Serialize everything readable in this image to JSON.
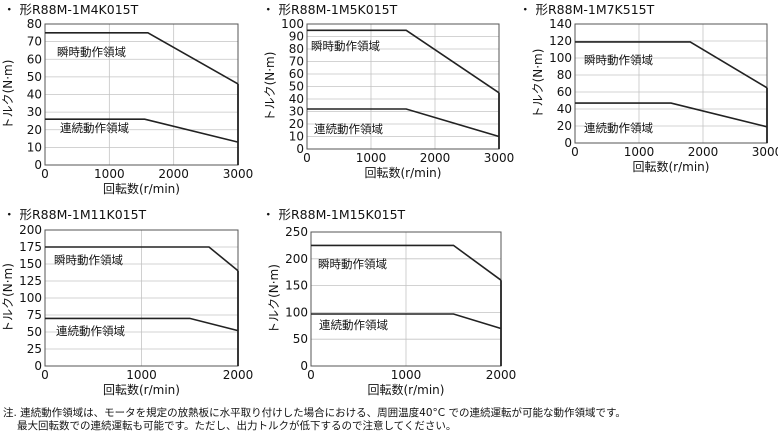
{
  "footnote": {
    "line1": "注. 連続動作領域は、モータを規定の放熱板に水平取り付けした場合における、周囲温度40°C での連続運転が可能な動作領域です。",
    "line2": "最大回転数での連続運転も可能です。ただし、出力トルクが低下するので注意してください。"
  },
  "chart_data": [
    {
      "type": "line",
      "title": "・ 形R88M-1M4K015T",
      "xlabel": "回転数(r/min)",
      "ylabel": "トルク(N·m)",
      "xlim": [
        0,
        3000
      ],
      "ylim": [
        0,
        80
      ],
      "xticks": [
        0,
        1000,
        2000,
        3000
      ],
      "yticks": [
        0,
        10,
        20,
        30,
        40,
        50,
        60,
        70,
        80
      ],
      "series": [
        {
          "name": "瞬時動作領域",
          "x": [
            0,
            1600,
            3000
          ],
          "y": [
            75,
            75,
            46
          ]
        },
        {
          "name": "連続動作領域",
          "x": [
            0,
            1550,
            3000
          ],
          "y": [
            26,
            26,
            13
          ]
        }
      ]
    },
    {
      "type": "line",
      "title": "・ 形R88M-1M5K015T",
      "xlabel": "回転数(r/min)",
      "ylabel": "トルク(N·m)",
      "xlim": [
        0,
        3000
      ],
      "ylim": [
        0,
        100
      ],
      "xticks": [
        0,
        1000,
        2000,
        3000
      ],
      "yticks": [
        0,
        10,
        20,
        30,
        40,
        50,
        60,
        70,
        80,
        90,
        100
      ],
      "series": [
        {
          "name": "瞬時動作領域",
          "x": [
            0,
            1550,
            3000
          ],
          "y": [
            95,
            95,
            45
          ]
        },
        {
          "name": "連続動作領域",
          "x": [
            0,
            1550,
            3000
          ],
          "y": [
            32,
            32,
            10
          ]
        }
      ]
    },
    {
      "type": "line",
      "title": "・ 形R88M-1M7K515T",
      "xlabel": "回転数(r/min)",
      "ylabel": "トルク(N·m)",
      "xlim": [
        0,
        3000
      ],
      "ylim": [
        0,
        140
      ],
      "xticks": [
        0,
        1000,
        2000,
        3000
      ],
      "yticks": [
        0,
        20,
        40,
        60,
        80,
        100,
        120,
        140
      ],
      "series": [
        {
          "name": "瞬時動作領域",
          "x": [
            0,
            1800,
            3000
          ],
          "y": [
            119,
            119,
            65
          ]
        },
        {
          "name": "連続動作領域",
          "x": [
            0,
            1500,
            3000
          ],
          "y": [
            47,
            47,
            19
          ]
        }
      ]
    },
    {
      "type": "line",
      "title": "・ 形R88M-1M11K015T",
      "xlabel": "回転数(r/min)",
      "ylabel": "トルク(N·m)",
      "xlim": [
        0,
        2000
      ],
      "ylim": [
        0,
        200
      ],
      "xticks": [
        0,
        1000,
        2000
      ],
      "yticks": [
        0,
        25,
        50,
        75,
        100,
        125,
        150,
        175,
        200
      ],
      "series": [
        {
          "name": "瞬時動作領域",
          "x": [
            0,
            1700,
            2000
          ],
          "y": [
            175,
            175,
            140
          ]
        },
        {
          "name": "連続動作領域",
          "x": [
            0,
            1500,
            2000
          ],
          "y": [
            70,
            70,
            52
          ]
        }
      ]
    },
    {
      "type": "line",
      "title": "・ 形R88M-1M15K015T",
      "xlabel": "回転数(r/min)",
      "ylabel": "トルク(N·m)",
      "xlim": [
        0,
        2000
      ],
      "ylim": [
        0,
        250
      ],
      "xticks": [
        0,
        1000,
        2000
      ],
      "yticks": [
        0,
        50,
        100,
        150,
        200,
        250
      ],
      "series": [
        {
          "name": "瞬時動作領域",
          "x": [
            0,
            1500,
            2000
          ],
          "y": [
            225,
            225,
            160
          ]
        },
        {
          "name": "連続動作領域",
          "x": [
            0,
            1500,
            2000
          ],
          "y": [
            97,
            97,
            70
          ]
        }
      ]
    }
  ]
}
